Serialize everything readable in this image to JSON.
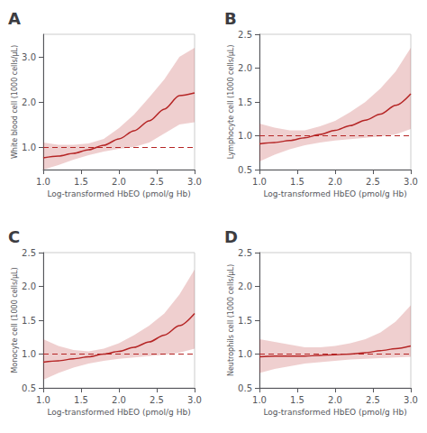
{
  "chart_data": [
    {
      "type": "line",
      "title": "A",
      "xlabel": "Log-transformed HbEO (pmol/g Hb)",
      "ylabel": "White blood cell (1000 cells/μL)",
      "x": [
        1.0,
        1.2,
        1.4,
        1.6,
        1.8,
        2.0,
        2.2,
        2.4,
        2.6,
        2.8,
        3.0
      ],
      "series": [
        {
          "color": "#b52525",
          "values": [
            0.76,
            0.8,
            0.86,
            0.94,
            1.04,
            1.18,
            1.36,
            1.58,
            1.84,
            2.14,
            2.2
          ],
          "lower": [
            0.5,
            0.6,
            0.72,
            0.82,
            0.9,
            0.96,
            1.0,
            1.1,
            1.3,
            1.5,
            1.55
          ],
          "upper": [
            1.1,
            1.05,
            1.05,
            1.08,
            1.18,
            1.42,
            1.72,
            2.1,
            2.5,
            3.0,
            3.2
          ]
        }
      ],
      "hline": 1.0,
      "xlim": [
        1.0,
        3.0
      ],
      "xticks": [
        {
          "value": 1.0,
          "label": "1.0"
        },
        1.5,
        {
          "value": 2.0,
          "label": "2.0"
        },
        2.5,
        {
          "value": 3.0,
          "label": "3.0"
        }
      ],
      "ylim": [
        0.5,
        3.5
      ],
      "yticks": [
        {
          "value": 1.0,
          "label": "1.0"
        },
        {
          "value": 2.0,
          "label": "2.0"
        },
        {
          "value": 3.0,
          "label": "3.0"
        }
      ],
      "grid": false
    },
    {
      "type": "line",
      "title": "B",
      "xlabel": "Log-transformed HbEO (pmol/g Hb)",
      "ylabel": "Lymphocyte cell (1000 cells/μL)",
      "x": [
        1.0,
        1.2,
        1.4,
        1.6,
        1.8,
        2.0,
        2.2,
        2.4,
        2.6,
        2.8,
        3.0
      ],
      "series": [
        {
          "color": "#b52525",
          "values": [
            0.88,
            0.9,
            0.93,
            0.97,
            1.02,
            1.08,
            1.15,
            1.23,
            1.32,
            1.45,
            1.62
          ],
          "lower": [
            0.62,
            0.72,
            0.8,
            0.86,
            0.9,
            0.93,
            0.95,
            0.97,
            0.99,
            1.02,
            1.1
          ],
          "upper": [
            1.18,
            1.12,
            1.08,
            1.08,
            1.14,
            1.22,
            1.35,
            1.5,
            1.7,
            1.95,
            2.3
          ]
        }
      ],
      "hline": 1.0,
      "xlim": [
        1.0,
        3.0
      ],
      "xticks": [
        {
          "value": 1.0,
          "label": "1.0"
        },
        1.5,
        {
          "value": 2.0,
          "label": "2.0"
        },
        2.5,
        {
          "value": 3.0,
          "label": "3.0"
        }
      ],
      "ylim": [
        0.5,
        2.5
      ],
      "yticks": [
        0.5,
        {
          "value": 1.0,
          "label": "1.0"
        },
        1.5,
        {
          "value": 2.0,
          "label": "2.0"
        },
        2.5
      ],
      "grid": false
    },
    {
      "type": "line",
      "title": "C",
      "xlabel": "Log-transformed HbEO (pmol/g Hb)",
      "ylabel": "Monocyte cell (1000 cells/μL)",
      "x": [
        1.0,
        1.2,
        1.4,
        1.6,
        1.8,
        2.0,
        2.2,
        2.4,
        2.6,
        2.8,
        3.0
      ],
      "series": [
        {
          "color": "#b52525",
          "values": [
            0.88,
            0.9,
            0.93,
            0.96,
            1.0,
            1.04,
            1.1,
            1.18,
            1.28,
            1.42,
            1.6
          ],
          "lower": [
            0.62,
            0.72,
            0.8,
            0.86,
            0.9,
            0.93,
            0.95,
            0.97,
            0.99,
            1.02,
            1.08
          ],
          "upper": [
            1.22,
            1.12,
            1.06,
            1.04,
            1.08,
            1.16,
            1.28,
            1.42,
            1.6,
            1.88,
            2.25
          ]
        }
      ],
      "hline": 1.0,
      "xlim": [
        1.0,
        3.0
      ],
      "xticks": [
        {
          "value": 1.0,
          "label": "1.0"
        },
        1.5,
        {
          "value": 2.0,
          "label": "2.0"
        },
        2.5,
        {
          "value": 3.0,
          "label": "3.0"
        }
      ],
      "ylim": [
        0.5,
        2.5
      ],
      "yticks": [
        0.5,
        {
          "value": 1.0,
          "label": "1.0"
        },
        1.5,
        {
          "value": 2.0,
          "label": "2.0"
        },
        2.5
      ],
      "grid": false
    },
    {
      "type": "line",
      "title": "D",
      "xlabel": "Log-transformed HbEO (pmol/g Hb)",
      "ylabel": "Neutrophils cell (1000 cells/μL)",
      "x": [
        1.0,
        1.2,
        1.4,
        1.6,
        1.8,
        2.0,
        2.2,
        2.4,
        2.6,
        2.8,
        3.0
      ],
      "series": [
        {
          "color": "#b52525",
          "values": [
            0.96,
            0.97,
            0.97,
            0.97,
            0.98,
            0.99,
            1.0,
            1.02,
            1.05,
            1.08,
            1.12
          ],
          "lower": [
            0.72,
            0.78,
            0.82,
            0.86,
            0.88,
            0.9,
            0.92,
            0.93,
            0.94,
            0.95,
            0.96
          ],
          "upper": [
            1.22,
            1.18,
            1.14,
            1.1,
            1.1,
            1.12,
            1.16,
            1.22,
            1.32,
            1.48,
            1.72
          ]
        }
      ],
      "hline": 1.0,
      "xlim": [
        1.0,
        3.0
      ],
      "xticks": [
        {
          "value": 1.0,
          "label": "1.0"
        },
        1.5,
        {
          "value": 2.0,
          "label": "2.0"
        },
        2.5,
        {
          "value": 3.0,
          "label": "3.0"
        }
      ],
      "ylim": [
        0.5,
        2.5
      ],
      "yticks": [
        0.5,
        {
          "value": 1.0,
          "label": "1.0"
        },
        1.5,
        {
          "value": 2.0,
          "label": "2.0"
        },
        2.5
      ],
      "grid": false
    }
  ]
}
